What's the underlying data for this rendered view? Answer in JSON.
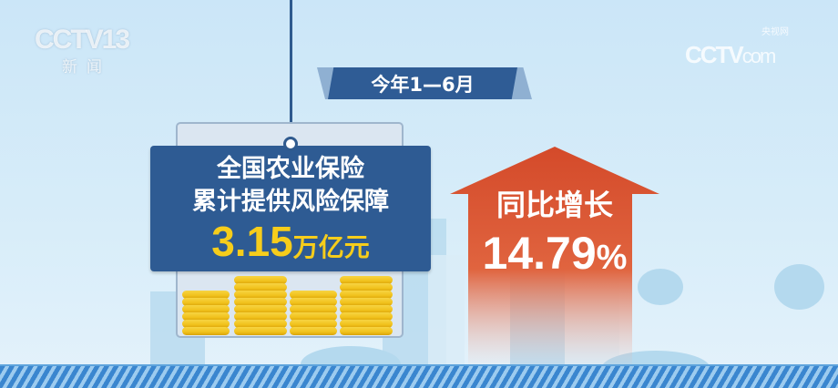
{
  "logos": {
    "left": {
      "brand": "CCTV",
      "channel": "13",
      "sub": "新闻"
    },
    "right": {
      "brand": "CCTV",
      "domain": "com",
      "sub": "央视网"
    }
  },
  "period_label": "今年1—6月",
  "card": {
    "line1": "全国农业保险",
    "line2": "累计提供风险保障",
    "value": "3.15",
    "unit": "万亿元"
  },
  "growth": {
    "label": "同比增长",
    "value": "14.79",
    "unit": "%"
  },
  "colors": {
    "primary_blue": "#2e5b93",
    "highlight_yellow": "#f6cd1b",
    "arrow_red": "#d44a2a"
  }
}
